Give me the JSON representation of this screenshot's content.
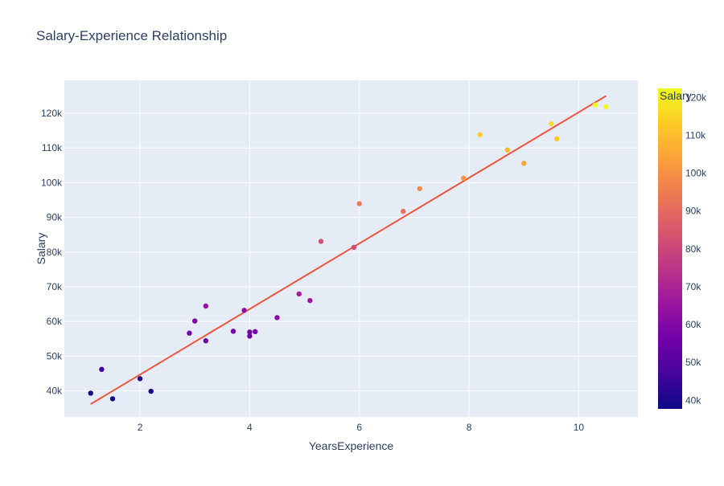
{
  "chart_data": {
    "type": "scatter",
    "title": "Salary-Experience Relationship",
    "xlabel": "YearsExperience",
    "ylabel": "Salary",
    "xlim": [
      0.62,
      11.08
    ],
    "ylim": [
      32500,
      129500
    ],
    "x_ticks": [
      2,
      4,
      6,
      8,
      10
    ],
    "y_ticks": [
      40000,
      50000,
      60000,
      70000,
      80000,
      90000,
      100000,
      110000,
      120000
    ],
    "y_tick_labels": [
      "40k",
      "50k",
      "60k",
      "70k",
      "80k",
      "90k",
      "100k",
      "110k",
      "120k"
    ],
    "grid": true,
    "colorbar": {
      "title": "Salary",
      "range": [
        37731,
        122391
      ],
      "ticks": [
        40000,
        50000,
        60000,
        70000,
        80000,
        90000,
        100000,
        110000,
        120000
      ],
      "tick_labels": [
        "40k",
        "50k",
        "60k",
        "70k",
        "80k",
        "90k",
        "100k",
        "110k",
        "120k"
      ],
      "colorscale": [
        "#0d0887",
        "#46039f",
        "#7201a8",
        "#9c179e",
        "#bd3786",
        "#d8576b",
        "#ed7953",
        "#fb9f3a",
        "#fdca26",
        "#f0f921"
      ]
    },
    "points": {
      "x": [
        1.1,
        1.3,
        1.5,
        2.0,
        2.2,
        2.9,
        3.0,
        3.2,
        3.2,
        3.7,
        3.9,
        4.0,
        4.0,
        4.1,
        4.5,
        4.9,
        5.1,
        5.3,
        5.9,
        6.0,
        6.8,
        7.1,
        7.9,
        8.2,
        8.7,
        9.0,
        9.5,
        9.6,
        10.3,
        10.5
      ],
      "y": [
        39343,
        46205,
        37731,
        43525,
        39891,
        56642,
        60150,
        54445,
        64445,
        57189,
        63218,
        55794,
        56957,
        57081,
        61111,
        67938,
        66029,
        83088,
        81363,
        93940,
        91738,
        98273,
        101302,
        113812,
        109431,
        105582,
        116969,
        112635,
        122391,
        121872
      ]
    },
    "trendline": {
      "x": [
        1.1,
        10.5
      ],
      "y": [
        36188,
        125024
      ],
      "color": "#ef553b"
    },
    "plot_background": "#e5ecf6"
  }
}
